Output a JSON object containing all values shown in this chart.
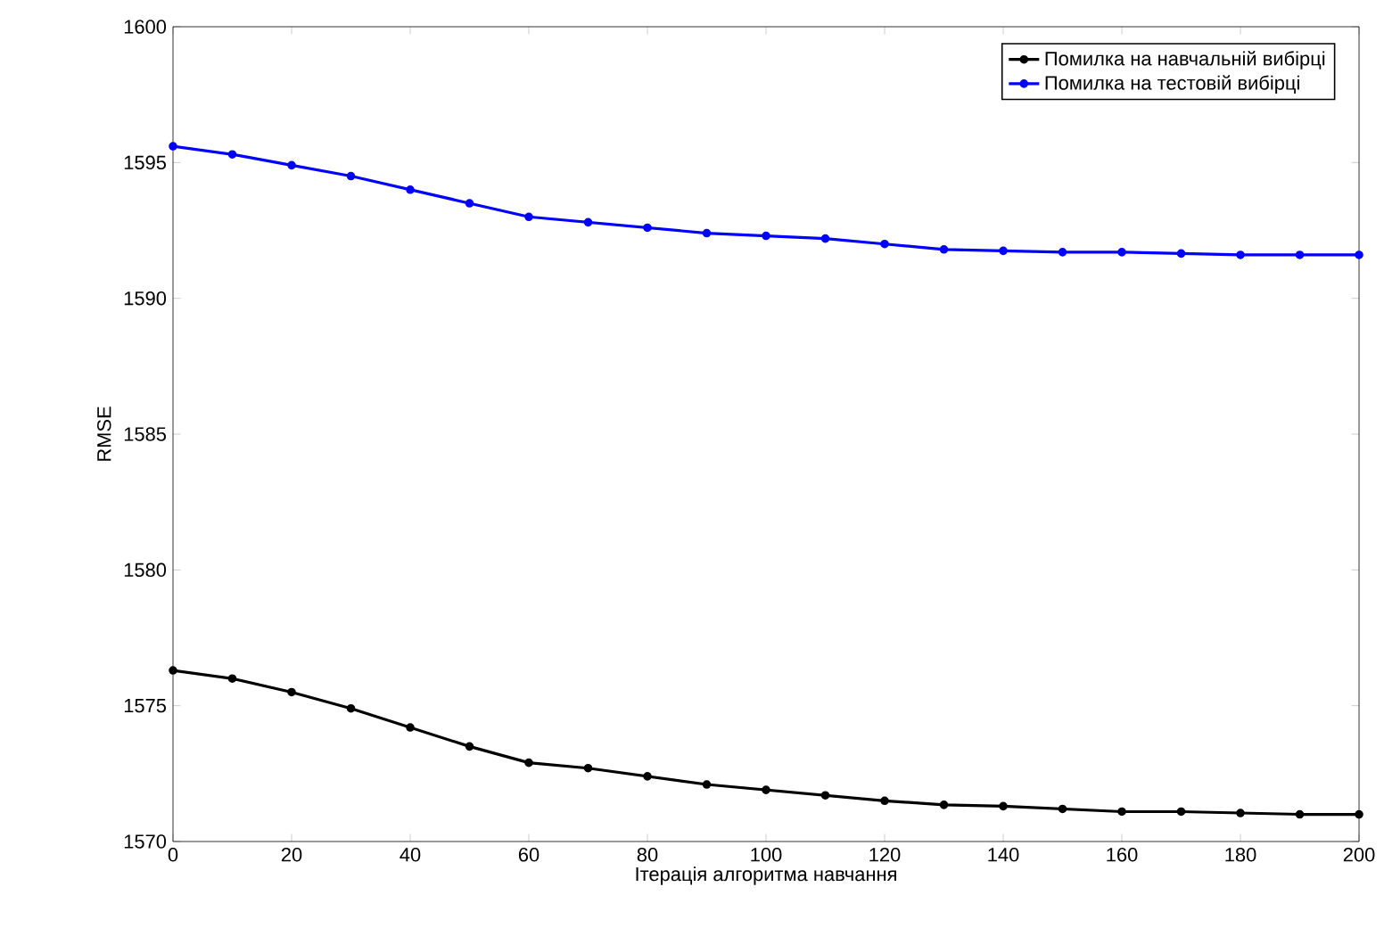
{
  "chart_data": {
    "type": "line",
    "xlabel": "Ітерація алгоритма навчання",
    "ylabel": "RMSE",
    "x": [
      0,
      10,
      20,
      30,
      40,
      50,
      60,
      70,
      80,
      90,
      100,
      110,
      120,
      130,
      140,
      150,
      160,
      170,
      180,
      190,
      200
    ],
    "series": [
      {
        "name": "Помилка на навчальній вибірці",
        "color": "#000000",
        "values": [
          1576.3,
          1576.0,
          1575.5,
          1574.9,
          1574.2,
          1573.5,
          1572.9,
          1572.7,
          1572.4,
          1572.1,
          1571.9,
          1571.7,
          1571.5,
          1571.35,
          1571.3,
          1571.2,
          1571.1,
          1571.1,
          1571.05,
          1571.0,
          1571.0
        ]
      },
      {
        "name": "Помилка на тестовій вибірці",
        "color": "#0000ff",
        "values": [
          1595.6,
          1595.3,
          1594.9,
          1594.5,
          1594.0,
          1593.5,
          1593.0,
          1592.8,
          1592.6,
          1592.4,
          1592.3,
          1592.2,
          1592.0,
          1591.8,
          1591.75,
          1591.7,
          1591.7,
          1591.65,
          1591.6,
          1591.6,
          1591.6
        ]
      }
    ],
    "xlim": [
      0,
      200
    ],
    "ylim": [
      1570,
      1600
    ],
    "xticks": [
      0,
      20,
      40,
      60,
      80,
      100,
      120,
      140,
      160,
      180,
      200
    ],
    "yticks": [
      1570,
      1575,
      1580,
      1585,
      1590,
      1595,
      1600
    ],
    "legend": "top right",
    "marker": "circle",
    "line_style": "solid",
    "grid": false
  }
}
